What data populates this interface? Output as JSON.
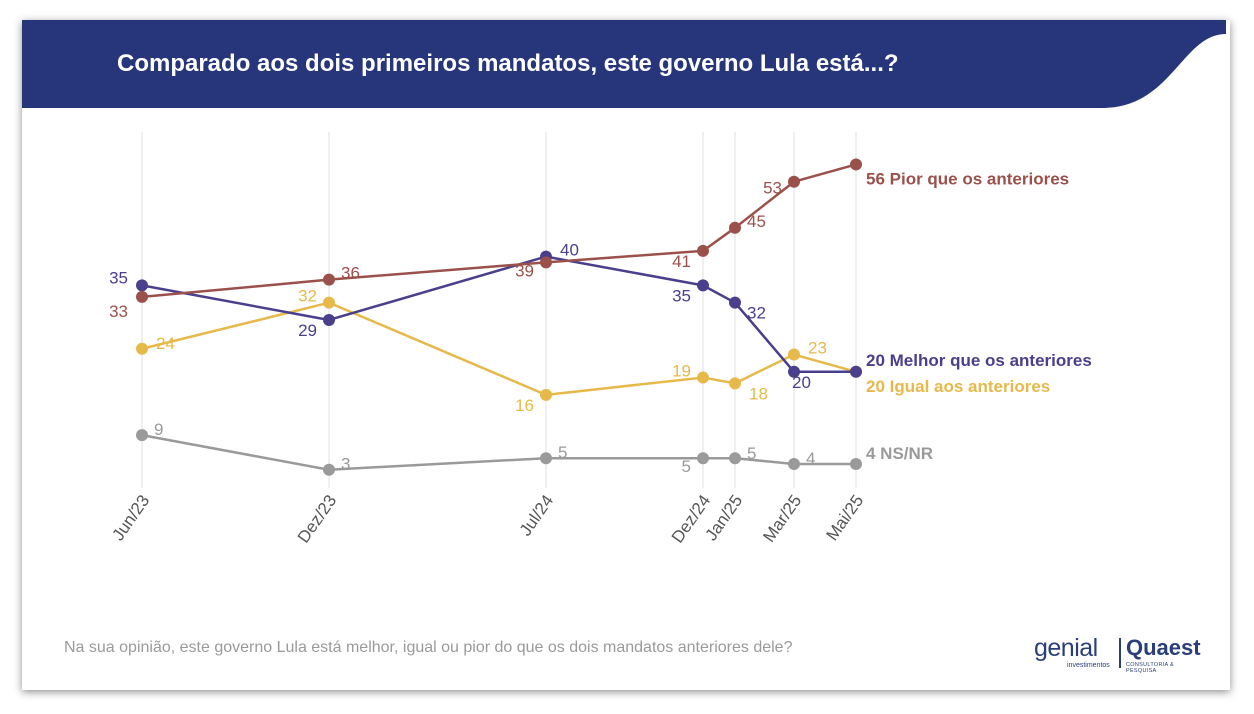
{
  "title": "Comparado aos dois primeiros mandatos, este governo Lula está...?",
  "footnote": "Na sua opinião, este governo Lula está melhor, igual ou pior do que os dois mandatos anteriores dele?",
  "logos": {
    "genial": "genial",
    "genial_sub": "investimentos",
    "quaest": "Quaest",
    "quaest_sub": "CONSULTORIA & PESQUISA"
  },
  "colors": {
    "banner": "#27357a",
    "pior": "#9b514b",
    "melhor": "#4a3f8c",
    "igual": "#e6b94a",
    "nsnr": "#9a9a9a",
    "gridline": "#e4e4e4"
  },
  "chart_data": {
    "type": "line",
    "categories": [
      "Jun/23",
      "Dez/23",
      "Jul/24",
      "Dez/24",
      "Jan/25",
      "Mar/25",
      "Mai/25"
    ],
    "grid": "vertical",
    "series": [
      {
        "key": "pior",
        "name": "Pior que os anteriores",
        "end_label": "56 Pior que os anteriores",
        "values": [
          33,
          36,
          39,
          41,
          45,
          53,
          56
        ]
      },
      {
        "key": "melhor",
        "name": "Melhor que os anteriores",
        "end_label": "20 Melhor que os anteriores",
        "values": [
          35,
          29,
          40,
          35,
          32,
          20,
          20
        ]
      },
      {
        "key": "igual",
        "name": "Igual aos anteriores",
        "end_label": "20 Igual aos anteriores",
        "values": [
          24,
          32,
          16,
          19,
          18,
          23,
          20
        ]
      },
      {
        "key": "nsnr",
        "name": "NS/NR",
        "end_label": "4 NS/NR",
        "values": [
          9,
          3,
          5,
          5,
          5,
          4,
          4
        ]
      }
    ]
  }
}
